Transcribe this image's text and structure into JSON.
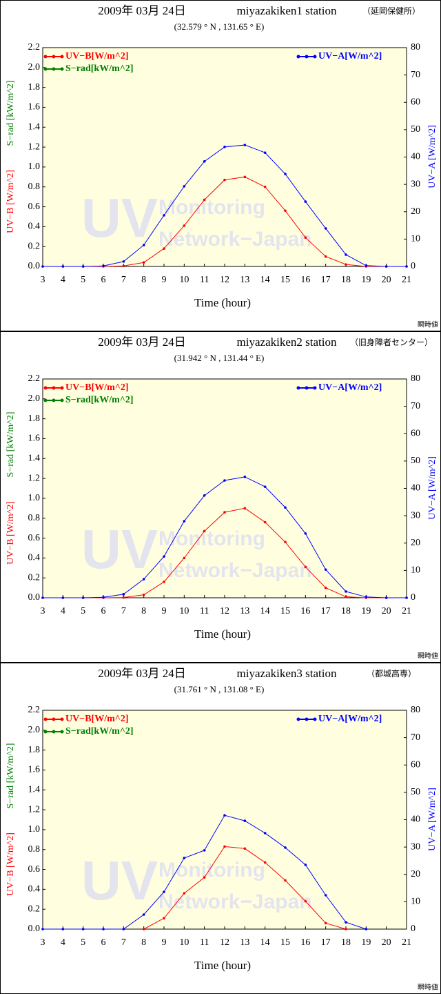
{
  "chart_data": [
    {
      "type": "line",
      "title": "2009年 03月 24日",
      "station": "miyazakiken1 station",
      "subtitle": "（延岡保健所）",
      "coordinates": "(32.579 ° N , 131.65 ° E)",
      "xlabel": "Time (hour)",
      "ylabels": [
        "UV−B [W/m^2]",
        "S−rad [kW/m^2]"
      ],
      "y2label": "UV−A [W/m^2]",
      "note": "瞬時値",
      "watermark": [
        "UV",
        "Monitoring",
        "Network−Japan"
      ],
      "x": [
        3,
        4,
        5,
        6,
        7,
        8,
        9,
        10,
        11,
        12,
        13,
        14,
        15,
        16,
        17,
        18,
        19,
        20,
        21
      ],
      "xlim": [
        3,
        21
      ],
      "xticks": [
        3,
        4,
        5,
        6,
        7,
        8,
        9,
        10,
        11,
        12,
        13,
        14,
        15,
        16,
        17,
        18,
        19,
        20,
        21
      ],
      "ylim": [
        0,
        2.2
      ],
      "yticks": [
        {
          "value": 0,
          "label": "0.0"
        },
        0.2,
        0.4,
        0.6,
        0.8,
        {
          "value": 1,
          "label": "1.0"
        },
        1.2,
        1.4,
        1.6,
        1.8,
        {
          "value": 2,
          "label": "2.0"
        },
        2.2
      ],
      "y2lim": [
        0,
        80
      ],
      "y2ticks": [
        0,
        10,
        20,
        30,
        40,
        50,
        60,
        70,
        80
      ],
      "series": [
        {
          "name": "UV−B[W/m^2]",
          "color": "#ff0000",
          "values": [
            0,
            0,
            0,
            0,
            0.005,
            0.04,
            0.18,
            0.41,
            0.67,
            0.87,
            0.9,
            0.8,
            0.56,
            0.29,
            0.1,
            0.02,
            0,
            0,
            0
          ]
        },
        {
          "name": "S−rad[kW/m^2]",
          "color": "#008000",
          "values": [
            null,
            null,
            null,
            null,
            null,
            null,
            null,
            null,
            null,
            null,
            null,
            null,
            null,
            null,
            null,
            null,
            null,
            null,
            null
          ]
        },
        {
          "name": "UV−A[W/m^2]",
          "color": "#0000ff",
          "axis": "y2",
          "values": [
            0,
            0,
            0,
            0.2,
            1.8,
            7.8,
            18.7,
            29.3,
            38.4,
            43.7,
            44.4,
            41.6,
            33.8,
            23.7,
            13.9,
            4.3,
            0.3,
            0,
            0
          ]
        }
      ]
    },
    {
      "type": "line",
      "title": "2009年 03月 24日",
      "station": "miyazakiken2 station",
      "subtitle": "（旧身障者センター）",
      "coordinates": "(31.942 ° N , 131.44 ° E)",
      "xlabel": "Time (hour)",
      "ylabels": [
        "UV−B [W/m^2]",
        "S−rad [kW/m^2]"
      ],
      "y2label": "UV−A [W/m^2]",
      "note": "瞬時値",
      "watermark": [
        "UV",
        "Monitoring",
        "Network−Japan"
      ],
      "x": [
        3,
        4,
        5,
        6,
        7,
        8,
        9,
        10,
        11,
        12,
        13,
        14,
        15,
        16,
        17,
        18,
        19,
        20,
        21
      ],
      "xlim": [
        3,
        21
      ],
      "xticks": [
        3,
        4,
        5,
        6,
        7,
        8,
        9,
        10,
        11,
        12,
        13,
        14,
        15,
        16,
        17,
        18,
        19,
        20,
        21
      ],
      "ylim": [
        0,
        2.2
      ],
      "yticks": [
        {
          "value": 0,
          "label": "0.0"
        },
        0.2,
        0.4,
        0.6,
        0.8,
        {
          "value": 1,
          "label": "1.0"
        },
        1.2,
        1.4,
        1.6,
        1.8,
        {
          "value": 2,
          "label": "2.0"
        },
        2.2
      ],
      "y2lim": [
        0,
        80
      ],
      "y2ticks": [
        0,
        10,
        20,
        30,
        40,
        50,
        60,
        70,
        80
      ],
      "series": [
        {
          "name": "UV−B[W/m^2]",
          "color": "#ff0000",
          "values": [
            0,
            0,
            0,
            0,
            0.003,
            0.03,
            0.16,
            0.4,
            0.67,
            0.86,
            0.9,
            0.76,
            0.56,
            0.31,
            0.1,
            0.01,
            0,
            0,
            0
          ]
        },
        {
          "name": "S−rad[kW/m^2]",
          "color": "#008000",
          "values": [
            null,
            null,
            null,
            null,
            null,
            null,
            null,
            null,
            null,
            null,
            null,
            null,
            null,
            null,
            null,
            null,
            null,
            null,
            null
          ]
        },
        {
          "name": "UV−A[W/m^2]",
          "color": "#0000ff",
          "axis": "y2",
          "values": [
            0,
            0,
            0,
            0.2,
            1.3,
            6.8,
            15.1,
            28,
            37.4,
            42.9,
            44.2,
            40.6,
            33,
            23.5,
            10.3,
            2.3,
            0.3,
            0,
            0
          ]
        }
      ]
    },
    {
      "type": "line",
      "title": "2009年 03月 24日",
      "station": "miyazakiken3 station",
      "subtitle": "（都城高専）",
      "coordinates": "(31.761 ° N , 131.08 ° E)",
      "xlabel": "Time (hour)",
      "ylabels": [
        "UV−B [W/m^2]",
        "S−rad [kW/m^2]"
      ],
      "y2label": "UV−A [W/m^2]",
      "note": "瞬時値",
      "watermark": [
        "UV",
        "Monitoring",
        "Network−Japan"
      ],
      "x": [
        3,
        4,
        5,
        6,
        7,
        8,
        9,
        10,
        11,
        12,
        13,
        14,
        15,
        16,
        17,
        18,
        19,
        20,
        21
      ],
      "xlim": [
        3,
        21
      ],
      "xticks": [
        3,
        4,
        5,
        6,
        7,
        8,
        9,
        10,
        11,
        12,
        13,
        14,
        15,
        16,
        17,
        18,
        19,
        20,
        21
      ],
      "ylim": [
        0,
        2.2
      ],
      "yticks": [
        {
          "value": 0,
          "label": "0.0"
        },
        0.2,
        0.4,
        0.6,
        0.8,
        {
          "value": 1,
          "label": "1.0"
        },
        1.2,
        1.4,
        1.6,
        1.8,
        {
          "value": 2,
          "label": "2.0"
        },
        2.2
      ],
      "y2lim": [
        0,
        80
      ],
      "y2ticks": [
        0,
        10,
        20,
        30,
        40,
        50,
        60,
        70,
        80
      ],
      "series": [
        {
          "name": "UV−B[W/m^2]",
          "color": "#ff0000",
          "values": [
            null,
            null,
            null,
            null,
            null,
            0,
            0.11,
            0.36,
            0.52,
            0.83,
            0.81,
            0.67,
            0.49,
            0.28,
            0.06,
            0,
            null,
            null,
            null
          ]
        },
        {
          "name": "S−rad[kW/m^2]",
          "color": "#008000",
          "values": [
            null,
            null,
            null,
            null,
            null,
            null,
            null,
            null,
            null,
            null,
            null,
            null,
            null,
            null,
            null,
            null,
            null,
            null,
            null
          ]
        },
        {
          "name": "UV−A[W/m^2]",
          "color": "#0000ff",
          "axis": "y2",
          "values": [
            0,
            0,
            0,
            0,
            0,
            5.3,
            13.6,
            26,
            28.8,
            41.6,
            39.6,
            35.1,
            29.8,
            23.5,
            12.4,
            2.5,
            0,
            null,
            null
          ]
        }
      ]
    }
  ]
}
